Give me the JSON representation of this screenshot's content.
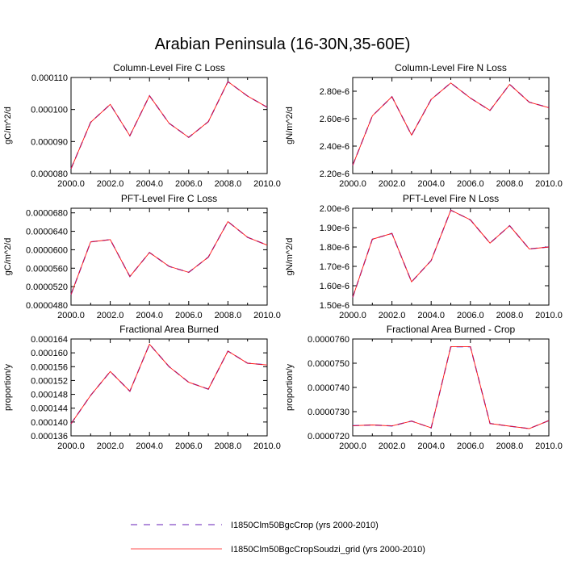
{
  "page_title": "Arabian Peninsula (16-30N,35-60E)",
  "legend": [
    {
      "label": "I1850Clm50BgcCrop (yrs 2000-2010)",
      "color": "#2222ff",
      "style": "dashed"
    },
    {
      "label": "I1850Clm50BgcCropSoudzi_grid (yrs 2000-2010)",
      "color": "#ff1111",
      "style": "solid"
    }
  ],
  "chart_data": [
    {
      "type": "line",
      "title": "Column-Level Fire C Loss",
      "ylabel": "gC/m^2/d",
      "xlim": [
        2000,
        2010
      ],
      "ylim": [
        8e-05,
        0.00011
      ],
      "xticks": [
        "2000.0",
        "2002.0",
        "2004.0",
        "2006.0",
        "2008.0",
        "2010.0"
      ],
      "yticks": [
        {
          "v": 8e-05,
          "label": "0.000080"
        },
        {
          "v": 9e-05,
          "label": "0.000090"
        },
        {
          "v": 0.0001,
          "label": "0.000100"
        },
        {
          "v": 0.00011,
          "label": "0.000110"
        }
      ],
      "x": [
        2000,
        2001,
        2002,
        2003,
        2004,
        2005,
        2006,
        2007,
        2008,
        2009,
        2010
      ],
      "series": [
        {
          "name": "I1850Clm50BgcCrop (yrs 2000-2010)",
          "values": [
            8.15e-05,
            9.6e-05,
            0.0001016,
            9.18e-05,
            0.0001043,
            9.57e-05,
            9.13e-05,
            9.62e-05,
            0.0001087,
            0.0001042,
            0.0001007
          ]
        },
        {
          "name": "I1850Clm50BgcCropSoudzi_grid (yrs 2000-2010)",
          "values": [
            8.15e-05,
            9.6e-05,
            0.0001016,
            9.18e-05,
            0.0001043,
            9.57e-05,
            9.13e-05,
            9.62e-05,
            0.0001087,
            0.0001042,
            0.0001007
          ]
        }
      ]
    },
    {
      "type": "line",
      "title": "Column-Level Fire N Loss",
      "ylabel": "gN/m^2/d",
      "xlim": [
        2000,
        2010
      ],
      "ylim": [
        2.2e-06,
        2.9e-06
      ],
      "xticks": [
        "2000.0",
        "2002.0",
        "2004.0",
        "2006.0",
        "2008.0",
        "2010.0"
      ],
      "yticks": [
        {
          "v": 2.2e-06,
          "label": "2.20e-6"
        },
        {
          "v": 2.4e-06,
          "label": "2.40e-6"
        },
        {
          "v": 2.6e-06,
          "label": "2.60e-6"
        },
        {
          "v": 2.8e-06,
          "label": "2.80e-6"
        }
      ],
      "x": [
        2000,
        2001,
        2002,
        2003,
        2004,
        2005,
        2006,
        2007,
        2008,
        2009,
        2010
      ],
      "series": [
        {
          "name": "I1850Clm50BgcCrop (yrs 2000-2010)",
          "values": [
            2.26e-06,
            2.62e-06,
            2.76e-06,
            2.48e-06,
            2.74e-06,
            2.86e-06,
            2.75e-06,
            2.66e-06,
            2.85e-06,
            2.72e-06,
            2.68e-06
          ]
        },
        {
          "name": "I1850Clm50BgcCropSoudzi_grid (yrs 2000-2010)",
          "values": [
            2.26e-06,
            2.62e-06,
            2.76e-06,
            2.48e-06,
            2.74e-06,
            2.86e-06,
            2.75e-06,
            2.66e-06,
            2.85e-06,
            2.72e-06,
            2.68e-06
          ]
        }
      ]
    },
    {
      "type": "line",
      "title": "PFT-Level Fire C Loss",
      "ylabel": "gC/m^2/d",
      "xlim": [
        2000,
        2010
      ],
      "ylim": [
        4.8e-05,
        6.9e-05
      ],
      "xticks": [
        "2000.0",
        "2002.0",
        "2004.0",
        "2006.0",
        "2008.0",
        "2010.0"
      ],
      "yticks": [
        {
          "v": 4.8e-05,
          "label": "0.0000480"
        },
        {
          "v": 5.2e-05,
          "label": "0.0000520"
        },
        {
          "v": 5.6e-05,
          "label": "0.0000560"
        },
        {
          "v": 6e-05,
          "label": "0.0000600"
        },
        {
          "v": 6.4e-05,
          "label": "0.0000640"
        },
        {
          "v": 6.8e-05,
          "label": "0.0000680"
        }
      ],
      "x": [
        2000,
        2001,
        2002,
        2003,
        2004,
        2005,
        2006,
        2007,
        2008,
        2009,
        2010
      ],
      "series": [
        {
          "name": "I1850Clm50BgcCrop (yrs 2000-2010)",
          "values": [
            5.03e-05,
            6.17e-05,
            6.22e-05,
            5.42e-05,
            5.94e-05,
            5.64e-05,
            5.51e-05,
            5.84e-05,
            6.61e-05,
            6.27e-05,
            6.1e-05
          ]
        },
        {
          "name": "I1850Clm50BgcCropSoudzi_grid (yrs 2000-2010)",
          "values": [
            5.03e-05,
            6.17e-05,
            6.22e-05,
            5.42e-05,
            5.94e-05,
            5.64e-05,
            5.51e-05,
            5.84e-05,
            6.61e-05,
            6.27e-05,
            6.1e-05
          ]
        }
      ]
    },
    {
      "type": "line",
      "title": "PFT-Level Fire N Loss",
      "ylabel": "gN/m^2/d",
      "xlim": [
        2000,
        2010
      ],
      "ylim": [
        1.5e-06,
        2e-06
      ],
      "xticks": [
        "2000.0",
        "2002.0",
        "2004.0",
        "2006.0",
        "2008.0",
        "2010.0"
      ],
      "yticks": [
        {
          "v": 1.5e-06,
          "label": "1.50e-6"
        },
        {
          "v": 1.6e-06,
          "label": "1.60e-6"
        },
        {
          "v": 1.7e-06,
          "label": "1.70e-6"
        },
        {
          "v": 1.8e-06,
          "label": "1.80e-6"
        },
        {
          "v": 1.9e-06,
          "label": "1.90e-6"
        },
        {
          "v": 2e-06,
          "label": "2.00e-6"
        }
      ],
      "x": [
        2000,
        2001,
        2002,
        2003,
        2004,
        2005,
        2006,
        2007,
        2008,
        2009,
        2010
      ],
      "series": [
        {
          "name": "I1850Clm50BgcCrop (yrs 2000-2010)",
          "values": [
            1.54e-06,
            1.84e-06,
            1.87e-06,
            1.62e-06,
            1.73e-06,
            1.99e-06,
            1.94e-06,
            1.82e-06,
            1.91e-06,
            1.79e-06,
            1.8e-06
          ]
        },
        {
          "name": "I1850Clm50BgcCropSoudzi_grid (yrs 2000-2010)",
          "values": [
            1.54e-06,
            1.84e-06,
            1.87e-06,
            1.62e-06,
            1.73e-06,
            1.99e-06,
            1.94e-06,
            1.82e-06,
            1.91e-06,
            1.79e-06,
            1.8e-06
          ]
        }
      ]
    },
    {
      "type": "line",
      "title": "Fractional Area Burned",
      "ylabel": "proportion/y",
      "xlim": [
        2000,
        2010
      ],
      "ylim": [
        0.000136,
        0.000164
      ],
      "xticks": [
        "2000.0",
        "2002.0",
        "2004.0",
        "2006.0",
        "2008.0",
        "2010.0"
      ],
      "yticks": [
        {
          "v": 0.000136,
          "label": "0.000136"
        },
        {
          "v": 0.00014,
          "label": "0.000140"
        },
        {
          "v": 0.000144,
          "label": "0.000144"
        },
        {
          "v": 0.000148,
          "label": "0.000148"
        },
        {
          "v": 0.000152,
          "label": "0.000152"
        },
        {
          "v": 0.000156,
          "label": "0.000156"
        },
        {
          "v": 0.00016,
          "label": "0.000160"
        },
        {
          "v": 0.000164,
          "label": "0.000164"
        }
      ],
      "x": [
        2000,
        2001,
        2002,
        2003,
        2004,
        2005,
        2006,
        2007,
        2008,
        2009,
        2010
      ],
      "series": [
        {
          "name": "I1850Clm50BgcCrop (yrs 2000-2010)",
          "values": [
            0.0001395,
            0.0001477,
            0.0001546,
            0.0001489,
            0.0001625,
            0.000156,
            0.0001515,
            0.0001495,
            0.0001605,
            0.000157,
            0.0001565
          ]
        },
        {
          "name": "I1850Clm50BgcCropSoudzi_grid (yrs 2000-2010)",
          "values": [
            0.0001395,
            0.0001477,
            0.0001546,
            0.0001489,
            0.0001625,
            0.000156,
            0.0001515,
            0.0001495,
            0.0001605,
            0.000157,
            0.0001565
          ]
        }
      ]
    },
    {
      "type": "line",
      "title": "Fractional Area Burned - Crop",
      "ylabel": "proportion/y",
      "xlim": [
        2000,
        2010
      ],
      "ylim": [
        7.2e-05,
        7.6e-05
      ],
      "xticks": [
        "2000.0",
        "2002.0",
        "2004.0",
        "2006.0",
        "2008.0",
        "2010.0"
      ],
      "yticks": [
        {
          "v": 7.2e-05,
          "label": "0.0000720"
        },
        {
          "v": 7.3e-05,
          "label": "0.0000730"
        },
        {
          "v": 7.4e-05,
          "label": "0.0000740"
        },
        {
          "v": 7.5e-05,
          "label": "0.0000750"
        },
        {
          "v": 7.6e-05,
          "label": "0.0000760"
        }
      ],
      "x": [
        2000,
        2001,
        2002,
        2003,
        2004,
        2005,
        2006,
        2007,
        2008,
        2009,
        2010
      ],
      "series": [
        {
          "name": "I1850Clm50BgcCrop (yrs 2000-2010)",
          "values": [
            7.242e-05,
            7.245e-05,
            7.241e-05,
            7.261e-05,
            7.233e-05,
            7.568e-05,
            7.568e-05,
            7.251e-05,
            7.24e-05,
            7.23e-05,
            7.263e-05
          ]
        },
        {
          "name": "I1850Clm50BgcCropSoudzi_grid (yrs 2000-2010)",
          "values": [
            7.242e-05,
            7.245e-05,
            7.241e-05,
            7.261e-05,
            7.233e-05,
            7.568e-05,
            7.568e-05,
            7.251e-05,
            7.24e-05,
            7.23e-05,
            7.263e-05
          ]
        }
      ]
    }
  ]
}
